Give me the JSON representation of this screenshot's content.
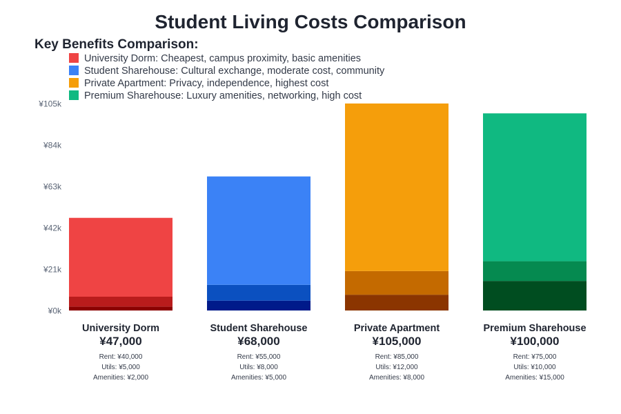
{
  "chart_data": {
    "type": "bar",
    "stacked": true,
    "title": "Student Living Costs Comparison",
    "legend_title": "Key Benefits Comparison:",
    "legend_placement": "top-left",
    "legend": [
      {
        "label": "University Dorm: Cheapest, campus proximity, basic amenities",
        "color": "#ef4444"
      },
      {
        "label": "Student Sharehouse: Cultural exchange, moderate cost, community",
        "color": "#3b82f6"
      },
      {
        "label": "Private Apartment: Privacy, independence, highest cost",
        "color": "#f59e0b"
      },
      {
        "label": "Premium Sharehouse: Luxury amenities, networking, high cost",
        "color": "#10b981"
      }
    ],
    "ylim": [
      0,
      105000
    ],
    "yticks": [
      0,
      21000,
      42000,
      63000,
      84000,
      105000
    ],
    "ytick_labels": [
      "¥0k",
      "¥21k",
      "¥42k",
      "¥63k",
      "¥84k",
      "¥105k"
    ],
    "grid": false,
    "categories": [
      {
        "name": "University Dorm",
        "total_label": "¥47,000",
        "rent": 40000,
        "utils": 5000,
        "amenities": 2000,
        "rent_label": "Rent: ¥40,000",
        "utils_label": "Utils: ¥5,000",
        "amenities_label": "Amenities: ¥2,000",
        "colors": [
          "#ef4444",
          "#b91c1c",
          "#8b0000"
        ]
      },
      {
        "name": "Student Sharehouse",
        "total_label": "¥68,000",
        "rent": 55000,
        "utils": 8000,
        "amenities": 5000,
        "rent_label": "Rent: ¥55,000",
        "utils_label": "Utils: ¥8,000",
        "amenities_label": "Amenities: ¥5,000",
        "colors": [
          "#3b82f6",
          "#0b50c0",
          "#001a8a"
        ]
      },
      {
        "name": "Private Apartment",
        "total_label": "¥105,000",
        "rent": 85000,
        "utils": 12000,
        "amenities": 8000,
        "rent_label": "Rent: ¥85,000",
        "utils_label": "Utils: ¥12,000",
        "amenities_label": "Amenities: ¥8,000",
        "colors": [
          "#f59e0b",
          "#c46a00",
          "#8b3500"
        ]
      },
      {
        "name": "Premium Sharehouse",
        "total_label": "¥100,000",
        "rent": 75000,
        "utils": 10000,
        "amenities": 15000,
        "rent_label": "Rent: ¥75,000",
        "utils_label": "Utils: ¥10,000",
        "amenities_label": "Amenities: ¥15,000",
        "colors": [
          "#10b981",
          "#058a50",
          "#004d20"
        ]
      }
    ]
  }
}
